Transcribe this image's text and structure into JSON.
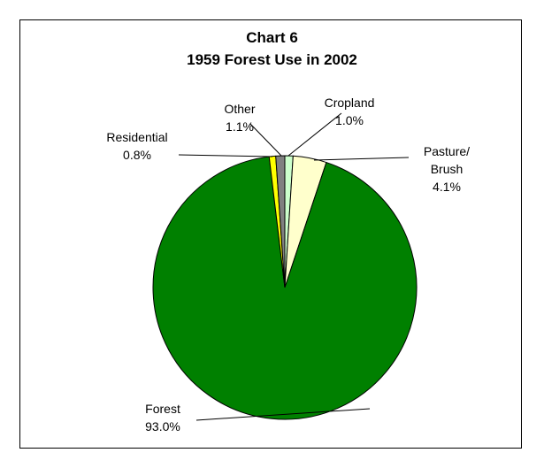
{
  "chart_data": {
    "type": "pie",
    "title": "Chart 6",
    "subtitle": "1959 Forest Use in 2002",
    "slices": [
      {
        "label": "Cropland",
        "value": 1.0,
        "value_label": "1.0%",
        "color": "#ccffcc"
      },
      {
        "label": "Pasture/ Brush",
        "label_lines": [
          "Pasture/",
          "Brush"
        ],
        "value": 4.1,
        "value_label": "4.1%",
        "color": "#ffffcc"
      },
      {
        "label": "Forest",
        "value": 93.0,
        "value_label": "93.0%",
        "color": "#008000"
      },
      {
        "label": "Residential",
        "value": 0.8,
        "value_label": "0.8%",
        "color": "#ffff00"
      },
      {
        "label": "Other",
        "value": 1.1,
        "value_label": "1.1%",
        "color": "#808080"
      }
    ],
    "legend": "none"
  }
}
